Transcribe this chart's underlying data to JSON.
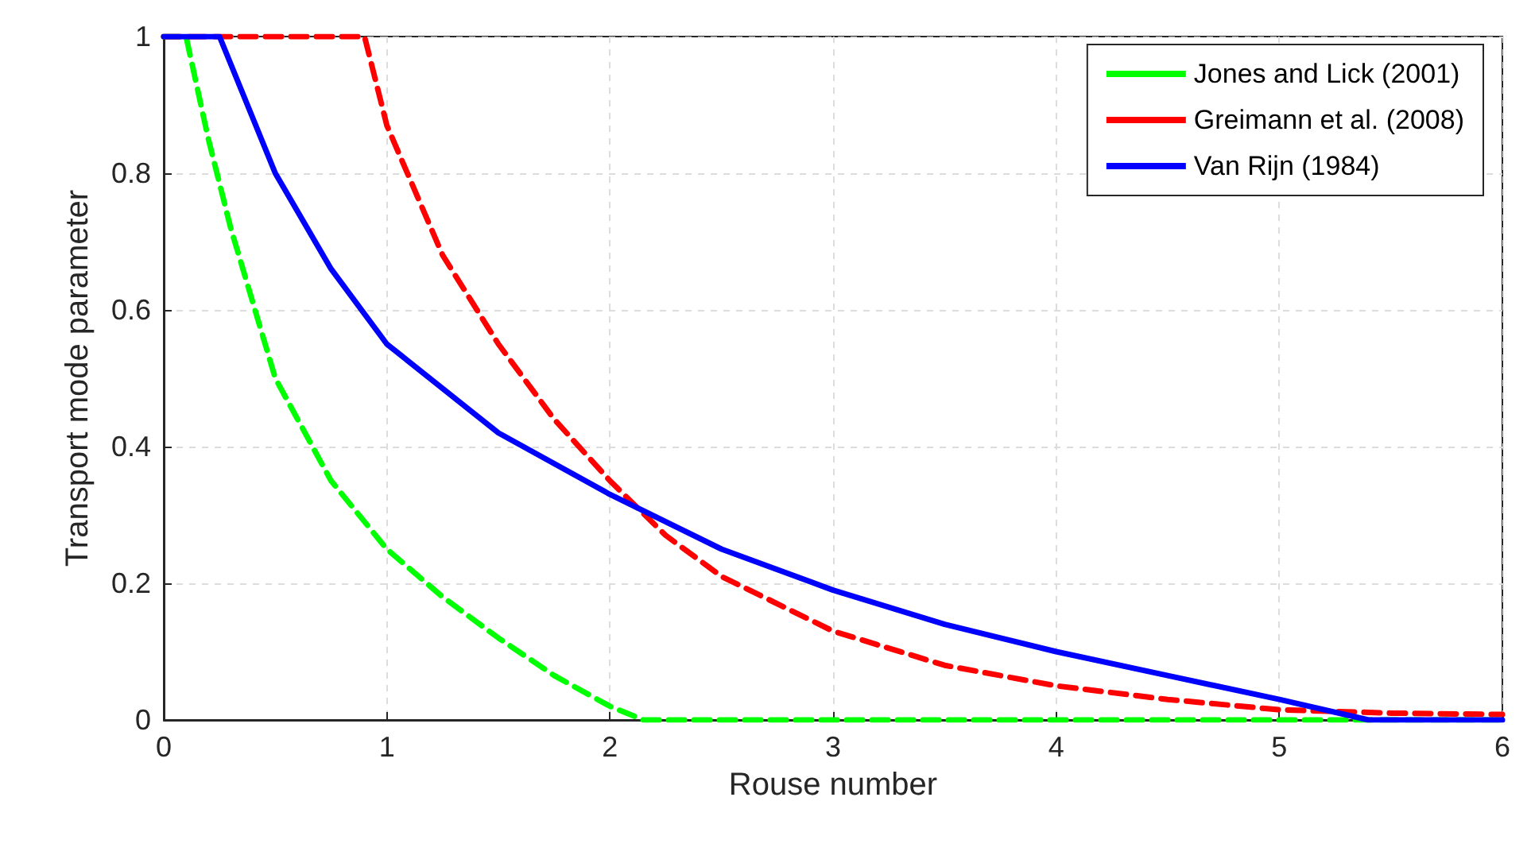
{
  "chart_data": {
    "type": "line",
    "xlabel": "Rouse number",
    "ylabel": "Transport mode parameter",
    "xlim": [
      0,
      6
    ],
    "ylim": [
      0,
      1
    ],
    "xticks": [
      0,
      1,
      2,
      3,
      4,
      5,
      6
    ],
    "yticks": [
      0,
      0.2,
      0.4,
      0.6,
      0.8,
      1
    ],
    "grid": true,
    "legend": "top right",
    "marker": "none",
    "series": [
      {
        "name": "Jones and Lick (2001)",
        "color": "#00ff00",
        "line_style": "dashed",
        "x": [
          0,
          0.1,
          0.2,
          0.3,
          0.5,
          0.75,
          1,
          1.25,
          1.5,
          1.75,
          2,
          2.15,
          6
        ],
        "values": [
          1,
          1,
          0.85,
          0.72,
          0.5,
          0.35,
          0.25,
          0.18,
          0.12,
          0.065,
          0.02,
          0,
          0
        ]
      },
      {
        "name": "Greimann et al. (2008)",
        "color": "#ff0000",
        "line_style": "dashed",
        "x": [
          0,
          0.9,
          1,
          1.25,
          1.5,
          1.75,
          2,
          2.25,
          2.5,
          3,
          3.5,
          4,
          4.5,
          5,
          5.5,
          6
        ],
        "values": [
          1,
          1,
          0.87,
          0.68,
          0.55,
          0.44,
          0.35,
          0.27,
          0.21,
          0.13,
          0.08,
          0.05,
          0.03,
          0.015,
          0.01,
          0.008
        ]
      },
      {
        "name": "Van Rijn (1984)",
        "color": "#0000ff",
        "line_style": "solid",
        "x": [
          0,
          0.25,
          0.5,
          0.75,
          1,
          1.5,
          2,
          2.5,
          3,
          3.5,
          4,
          4.5,
          5,
          5.4,
          6
        ],
        "values": [
          1,
          1,
          0.8,
          0.66,
          0.55,
          0.42,
          0.33,
          0.25,
          0.19,
          0.14,
          0.1,
          0.065,
          0.03,
          0,
          0
        ]
      }
    ]
  }
}
